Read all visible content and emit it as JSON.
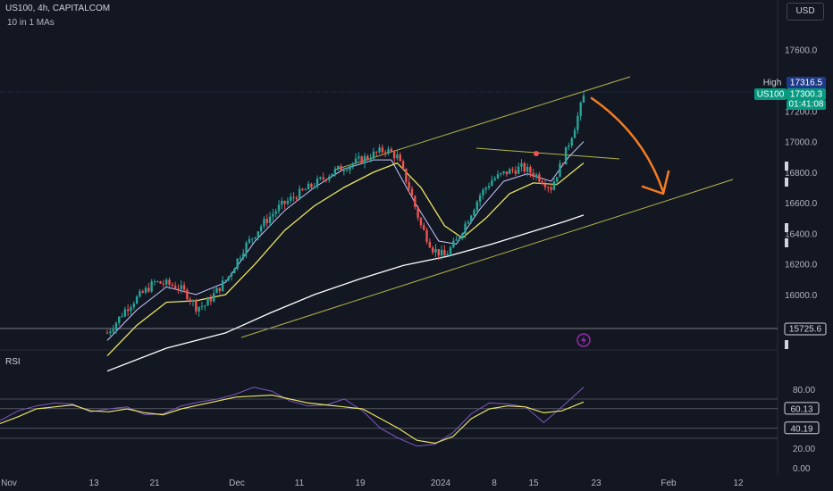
{
  "header": {
    "title": "US100, 4h, CAPITALCOM",
    "indicator": "10 in 1 MAs",
    "currency_button": "USD"
  },
  "chart_data": [
    {
      "type": "candlestick",
      "symbol_label": "US100",
      "ylim": [
        15650,
        17750
      ],
      "y_ticks": [
        "17600.0",
        "17400.0",
        "17200.0",
        "17000.0",
        "16800.0",
        "16600.0",
        "16400.0",
        "16200.0",
        "16000.0",
        "15800.0"
      ],
      "x_ticks": [
        "Nov",
        "13",
        "21",
        "Dec",
        "11",
        "19",
        "2024",
        "8",
        "15",
        "23",
        "Feb",
        "12"
      ],
      "price_labels": {
        "high_label": "High",
        "high_value": "17316.5",
        "last_symbol": "US100",
        "last_value": "17300.3",
        "countdown": "01:41:08",
        "marker_value": "15725.6"
      },
      "colors": {
        "up": "#26a69a",
        "down": "#ef5350",
        "ma_fast": "#c8c8ff",
        "ma_mid": "#e9e463",
        "ma_slow": "#ffffff",
        "trend": "#b5b54a",
        "arrow": "#f57c22",
        "countdown_bg": "#089981",
        "high_bg": "#1e3a8a",
        "flash_icon": "#9c27b0"
      },
      "close_path": [
        [
          0,
          15750
        ],
        [
          3,
          15820
        ],
        [
          6,
          15900
        ],
        [
          9,
          15960
        ],
        [
          12,
          16010
        ],
        [
          16,
          16080
        ],
        [
          20,
          16070
        ],
        [
          24,
          16050
        ],
        [
          27,
          16000
        ],
        [
          30,
          15920
        ],
        [
          33,
          15930
        ],
        [
          36,
          16000
        ],
        [
          41,
          16120
        ],
        [
          46,
          16300
        ],
        [
          52,
          16450
        ],
        [
          58,
          16570
        ],
        [
          64,
          16650
        ],
        [
          70,
          16720
        ],
        [
          76,
          16800
        ],
        [
          82,
          16850
        ],
        [
          88,
          16900
        ],
        [
          94,
          16950
        ],
        [
          98,
          16900
        ],
        [
          102,
          16700
        ],
        [
          106,
          16450
        ],
        [
          110,
          16300
        ],
        [
          114,
          16250
        ],
        [
          118,
          16350
        ],
        [
          122,
          16500
        ],
        [
          126,
          16650
        ],
        [
          130,
          16750
        ],
        [
          135,
          16800
        ],
        [
          140,
          16830
        ],
        [
          145,
          16780
        ],
        [
          150,
          16700
        ],
        [
          154,
          16880
        ],
        [
          158,
          17100
        ],
        [
          161,
          17290
        ]
      ],
      "ma_fast_path": [
        [
          0,
          15700
        ],
        [
          10,
          15900
        ],
        [
          20,
          16050
        ],
        [
          30,
          16000
        ],
        [
          40,
          16080
        ],
        [
          50,
          16350
        ],
        [
          60,
          16550
        ],
        [
          70,
          16700
        ],
        [
          80,
          16820
        ],
        [
          90,
          16880
        ],
        [
          96,
          16880
        ],
        [
          104,
          16600
        ],
        [
          112,
          16350
        ],
        [
          118,
          16330
        ],
        [
          126,
          16560
        ],
        [
          134,
          16740
        ],
        [
          142,
          16790
        ],
        [
          150,
          16740
        ],
        [
          156,
          16900
        ],
        [
          161,
          17000
        ]
      ],
      "ma_mid_path": [
        [
          0,
          15600
        ],
        [
          10,
          15800
        ],
        [
          20,
          15950
        ],
        [
          30,
          15960
        ],
        [
          40,
          16000
        ],
        [
          50,
          16200
        ],
        [
          60,
          16420
        ],
        [
          70,
          16580
        ],
        [
          80,
          16700
        ],
        [
          90,
          16800
        ],
        [
          98,
          16860
        ],
        [
          106,
          16700
        ],
        [
          114,
          16450
        ],
        [
          120,
          16370
        ],
        [
          128,
          16500
        ],
        [
          136,
          16660
        ],
        [
          144,
          16730
        ],
        [
          152,
          16720
        ],
        [
          161,
          16860
        ]
      ],
      "ma_slow_path": [
        [
          0,
          15500
        ],
        [
          20,
          15650
        ],
        [
          40,
          15750
        ],
        [
          55,
          15880
        ],
        [
          70,
          16000
        ],
        [
          85,
          16100
        ],
        [
          100,
          16190
        ],
        [
          115,
          16250
        ],
        [
          130,
          16330
        ],
        [
          145,
          16420
        ],
        [
          155,
          16480
        ],
        [
          161,
          16520
        ]
      ]
    },
    {
      "type": "line",
      "title": "RSI",
      "ylim": [
        0,
        100
      ],
      "y_ticks": [
        "80.00",
        "20.00",
        "0.00"
      ],
      "band_labels": [
        "60.13",
        "40.19"
      ],
      "series": [
        {
          "values": [
            [
              0,
              45
            ],
            [
              5,
              52
            ],
            [
              10,
              60
            ],
            [
              15,
              62
            ],
            [
              20,
              64
            ],
            [
              25,
              58
            ],
            [
              30,
              57
            ],
            [
              35,
              60
            ],
            [
              40,
              56
            ],
            [
              45,
              54
            ],
            [
              50,
              60
            ],
            [
              55,
              64
            ],
            [
              60,
              68
            ],
            [
              65,
              72
            ],
            [
              70,
              73
            ],
            [
              75,
              74
            ],
            [
              80,
              70
            ],
            [
              85,
              66
            ],
            [
              90,
              64
            ],
            [
              95,
              62
            ],
            [
              100,
              60
            ],
            [
              105,
              50
            ],
            [
              110,
              40
            ],
            [
              115,
              28
            ],
            [
              120,
              25
            ],
            [
              125,
              32
            ],
            [
              130,
              50
            ],
            [
              135,
              60
            ],
            [
              140,
              63
            ],
            [
              145,
              62
            ],
            [
              150,
              56
            ],
            [
              155,
              58
            ],
            [
              161,
              67
            ]
          ]
        },
        {
          "values": [
            [
              0,
              48
            ],
            [
              5,
              58
            ],
            [
              10,
              63
            ],
            [
              15,
              66
            ],
            [
              20,
              65
            ],
            [
              25,
              57
            ],
            [
              30,
              60
            ],
            [
              35,
              62
            ],
            [
              40,
              54
            ],
            [
              45,
              55
            ],
            [
              50,
              63
            ],
            [
              55,
              67
            ],
            [
              60,
              70
            ],
            [
              65,
              75
            ],
            [
              70,
              82
            ],
            [
              75,
              78
            ],
            [
              80,
              68
            ],
            [
              85,
              63
            ],
            [
              90,
              64
            ],
            [
              95,
              70
            ],
            [
              100,
              58
            ],
            [
              105,
              40
            ],
            [
              110,
              30
            ],
            [
              115,
              22
            ],
            [
              120,
              24
            ],
            [
              125,
              36
            ],
            [
              130,
              55
            ],
            [
              135,
              66
            ],
            [
              140,
              65
            ],
            [
              145,
              62
            ],
            [
              150,
              46
            ],
            [
              155,
              62
            ],
            [
              161,
              82
            ]
          ]
        }
      ]
    }
  ]
}
